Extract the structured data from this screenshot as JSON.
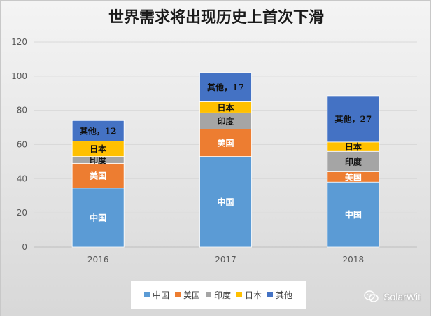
{
  "chart_data": {
    "type": "bar",
    "stacked": true,
    "title": "世界需求将出现历史上首次下滑",
    "categories": [
      "2016",
      "2017",
      "2018"
    ],
    "ylim": [
      0,
      120
    ],
    "yticks": [
      0,
      20,
      40,
      60,
      80,
      100,
      120
    ],
    "grid": true,
    "legend_position": "bottom",
    "series": [
      {
        "name": "中国",
        "color": "#5b9bd5",
        "values": [
          34.5,
          53,
          38
        ],
        "labels": [
          "中国",
          "中国",
          "中国"
        ]
      },
      {
        "name": "美国",
        "color": "#ed7d31",
        "values": [
          14.5,
          16,
          6
        ],
        "labels": [
          "美国",
          "美国",
          "美国"
        ]
      },
      {
        "name": "印度",
        "color": "#a5a5a5",
        "values": [
          4,
          9.5,
          12
        ],
        "labels": [
          "印度",
          "印度",
          "印度"
        ]
      },
      {
        "name": "日本",
        "color": "#ffc000",
        "values": [
          9,
          6.5,
          5.5
        ],
        "labels": [
          "日本",
          "日本",
          "日本"
        ]
      },
      {
        "name": "其他",
        "color": "#4472c4",
        "values": [
          12,
          17,
          27
        ],
        "labels": [
          "其他，12",
          "其他，17",
          "其他，27"
        ]
      }
    ]
  },
  "watermark": {
    "text": "SolarWit",
    "icon": "wechat-icon"
  }
}
